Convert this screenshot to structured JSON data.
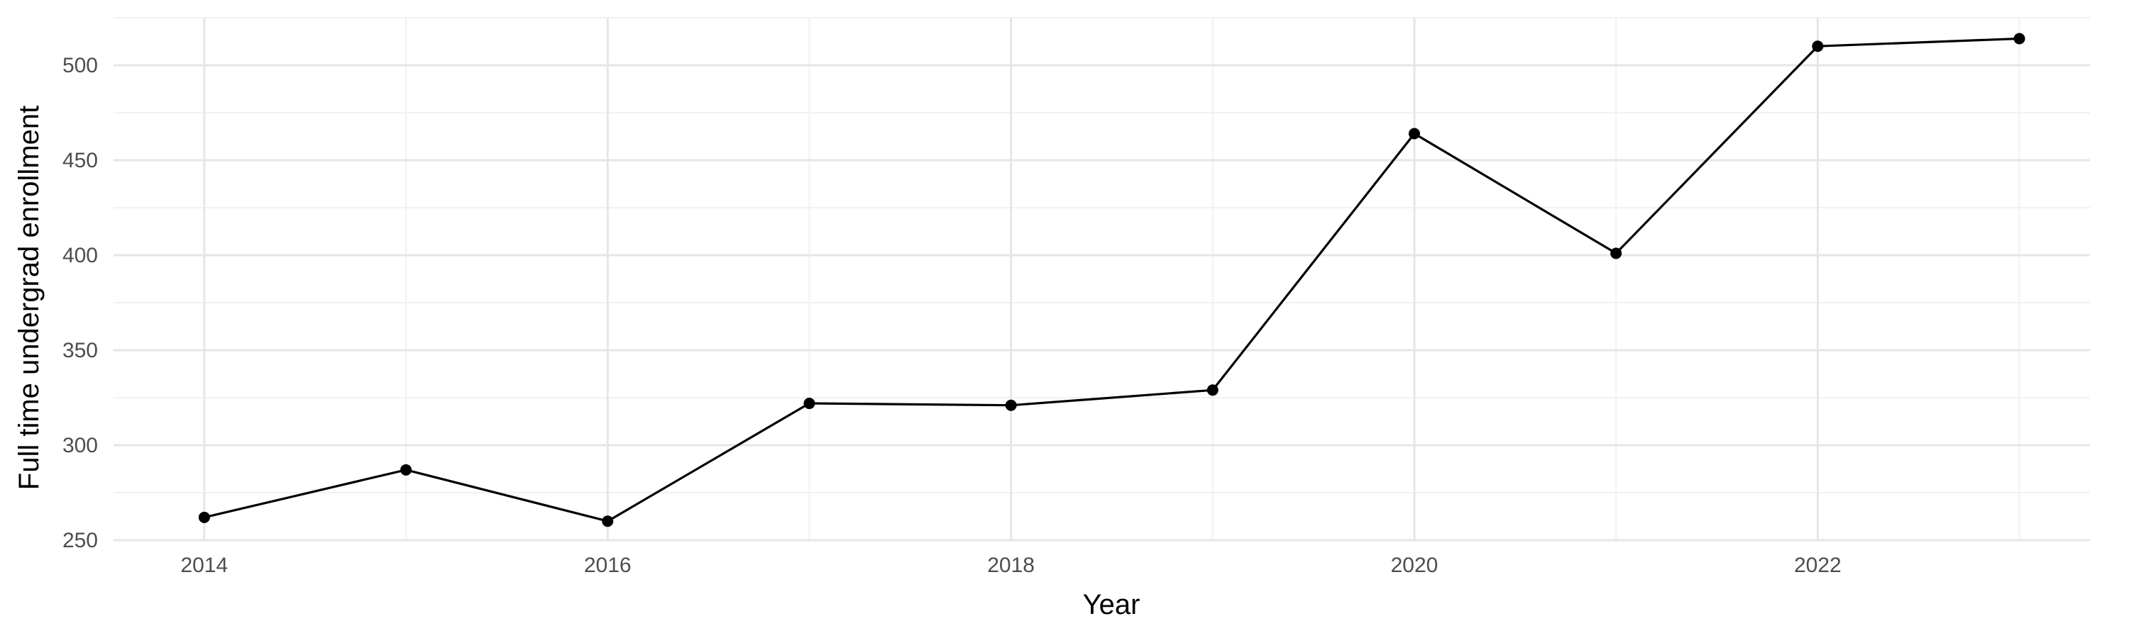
{
  "chart_data": {
    "type": "line",
    "title": "",
    "xlabel": "Year",
    "ylabel": "Full time undergrad enrollment",
    "x": [
      2014,
      2015,
      2016,
      2017,
      2018,
      2019,
      2020,
      2021,
      2022,
      2023
    ],
    "series": [
      {
        "values": [
          262,
          287,
          260,
          322,
          321,
          329,
          464,
          401,
          510,
          514
        ]
      }
    ],
    "xlim": [
      2013.55,
      2023.35
    ],
    "ylim": [
      250,
      525
    ],
    "x_ticks": [
      2014,
      2016,
      2018,
      2020,
      2022
    ],
    "x_tick_labels": [
      "2014",
      "2016",
      "2018",
      "2020",
      "2022"
    ],
    "y_ticks": [
      250,
      300,
      350,
      400,
      450,
      500
    ],
    "y_tick_labels": [
      "250",
      "300",
      "350",
      "400",
      "450",
      "500"
    ],
    "grid": true,
    "legend": "none",
    "colors": {
      "line": "#000000",
      "points": "#000000",
      "grid": "#e6e6e6",
      "background": "#ffffff"
    }
  }
}
